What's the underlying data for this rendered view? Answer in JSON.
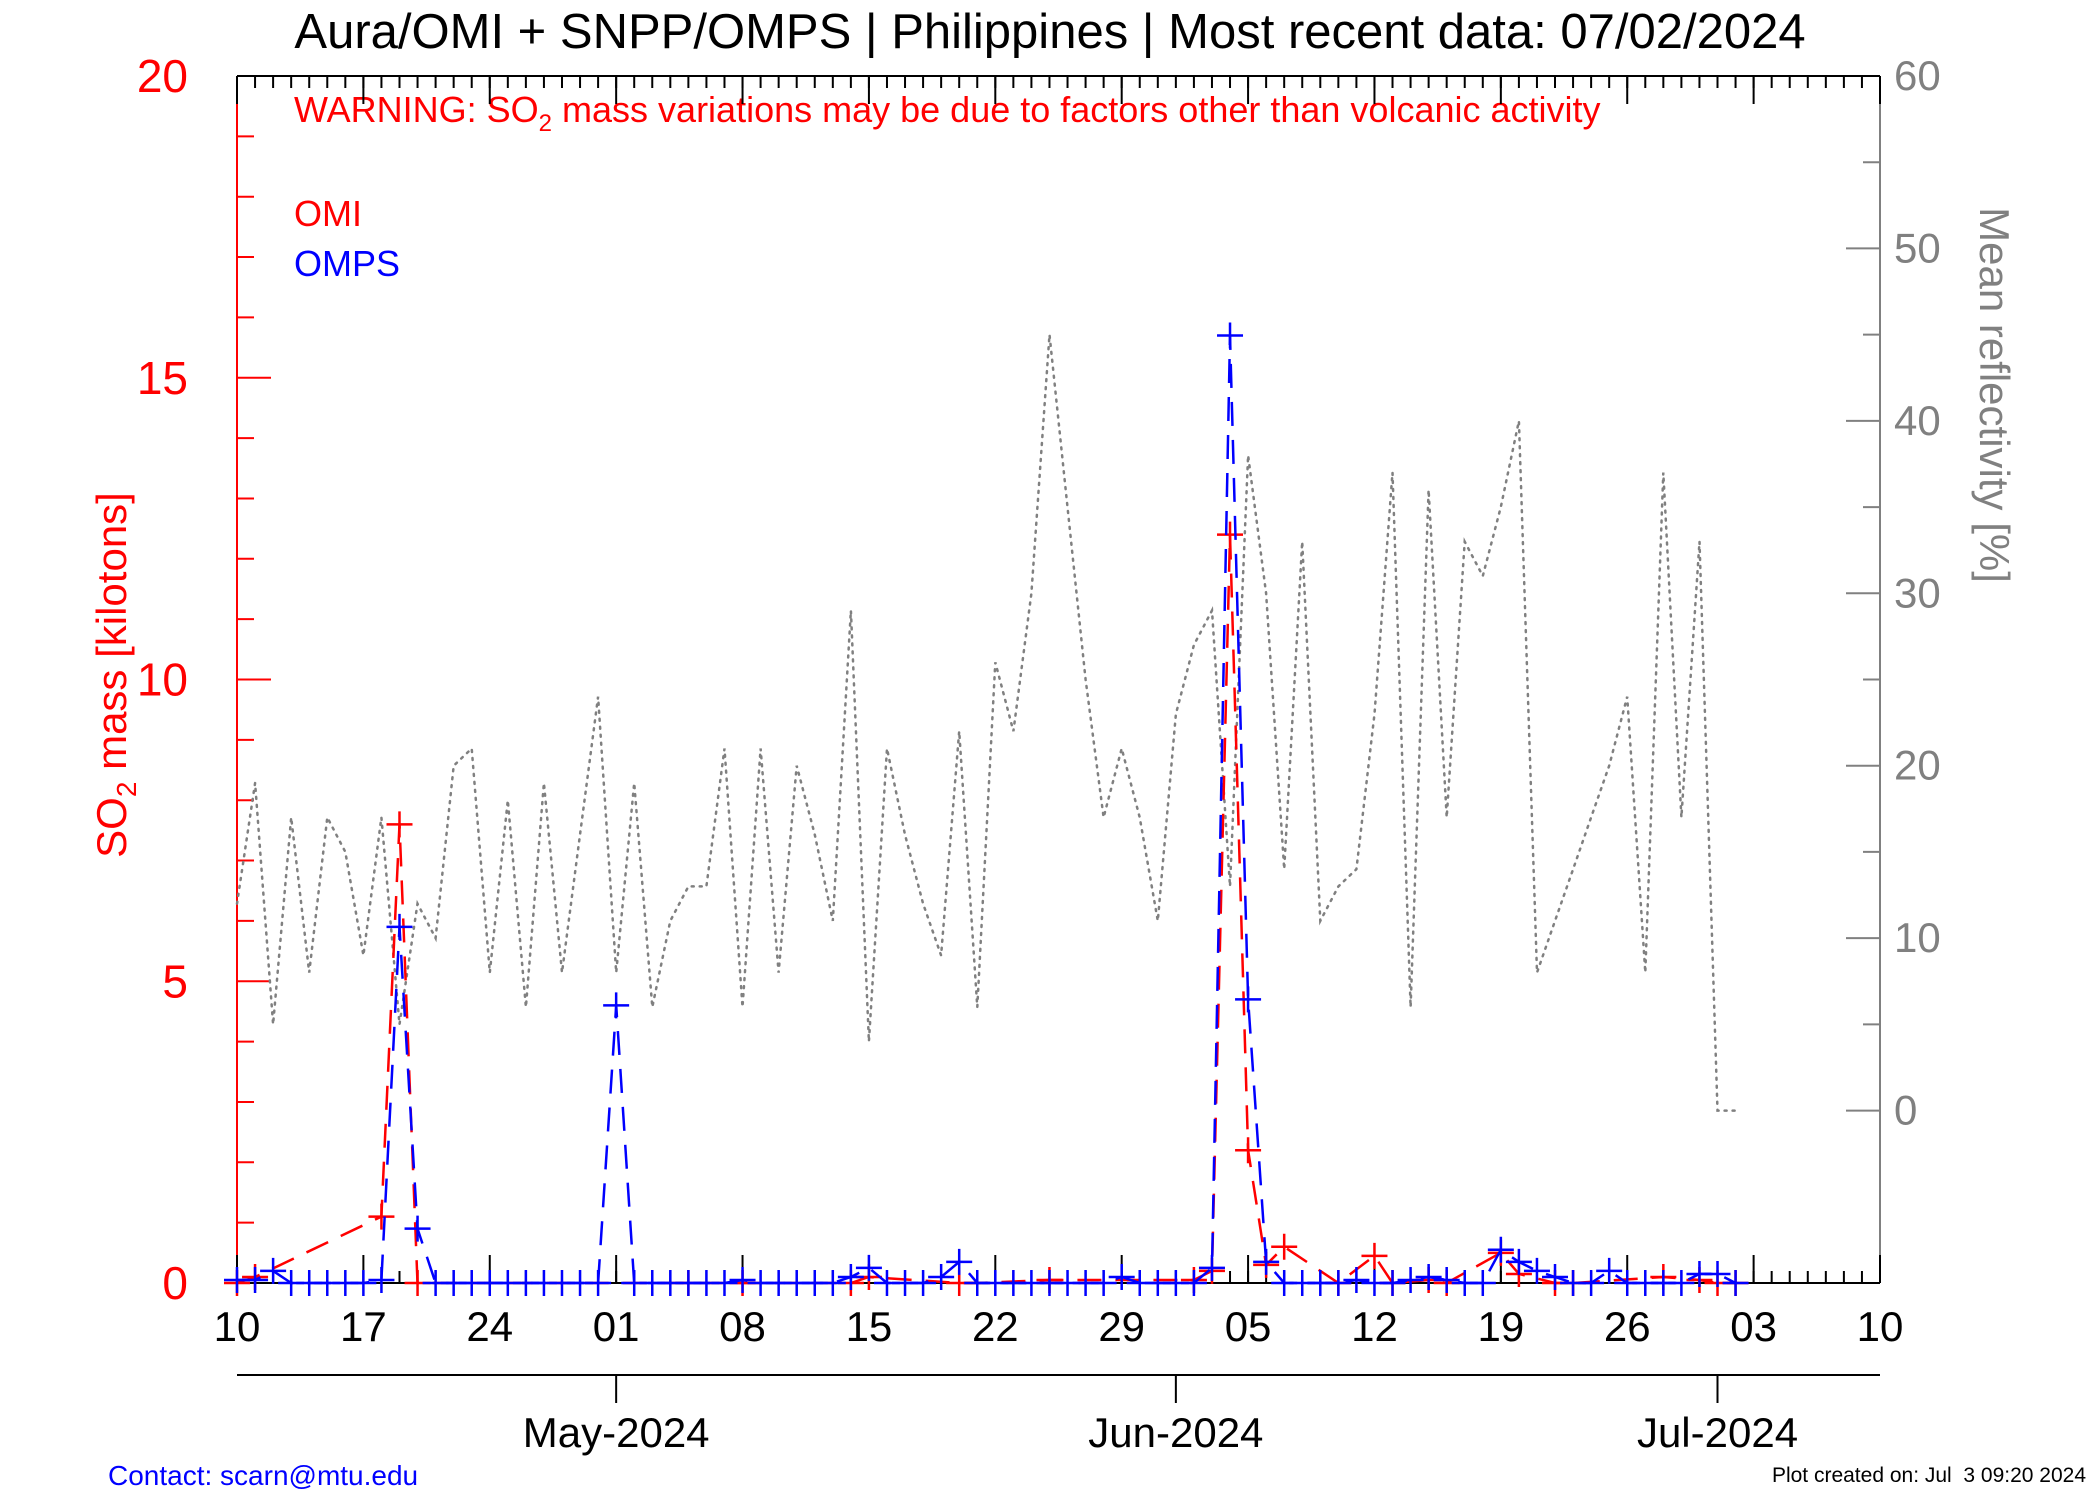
{
  "chart_data": {
    "type": "line",
    "title": "Aura/OMI + SNPP/OMPS | Philippines | Most recent data: 07/02/2024",
    "warning": {
      "prefix": "WARNING: SO",
      "subscript": "2",
      "suffix": " mass variations may be due to factors other than volcanic activity"
    },
    "ylabel_left": {
      "prefix": "SO",
      "subscript": "2",
      "suffix": " mass [kilotons]"
    },
    "ylabel_right": "Mean reflectivity [%]",
    "ylim_left": [
      0,
      20
    ],
    "ylim_right": [
      -10,
      60
    ],
    "y_ticks_left": [
      "0",
      "5",
      "10",
      "15",
      "20"
    ],
    "y_ticks_right": [
      "0",
      "10",
      "20",
      "30",
      "40",
      "50",
      "60"
    ],
    "xlim": [
      "2024-04-10",
      "2024-07-10"
    ],
    "x_ticks": [
      {
        "date": "2024-04-10",
        "label": "10"
      },
      {
        "date": "2024-04-17",
        "label": "17"
      },
      {
        "date": "2024-04-24",
        "label": "24"
      },
      {
        "date": "2024-05-01",
        "label": "01"
      },
      {
        "date": "2024-05-08",
        "label": "08"
      },
      {
        "date": "2024-05-15",
        "label": "15"
      },
      {
        "date": "2024-05-22",
        "label": "22"
      },
      {
        "date": "2024-05-29",
        "label": "29"
      },
      {
        "date": "2024-06-05",
        "label": "05"
      },
      {
        "date": "2024-06-12",
        "label": "12"
      },
      {
        "date": "2024-06-19",
        "label": "19"
      },
      {
        "date": "2024-06-26",
        "label": "26"
      },
      {
        "date": "2024-07-03",
        "label": "03"
      },
      {
        "date": "2024-07-10",
        "label": "10"
      }
    ],
    "months": [
      {
        "date": "2024-05-01",
        "label": "May-2024"
      },
      {
        "date": "2024-06-01",
        "label": "Jun-2024"
      },
      {
        "date": "2024-07-01",
        "label": "Jul-2024"
      }
    ],
    "legend_placement": "top-left",
    "series": [
      {
        "name": "OMI",
        "color": "#ff0000",
        "style": "dashed",
        "x": [
          "2024-04-10",
          "2024-04-11",
          "2024-04-18",
          "2024-04-19",
          "2024-04-20",
          "2024-05-05",
          "2024-05-08",
          "2024-05-14",
          "2024-05-15",
          "2024-05-20",
          "2024-05-21",
          "2024-05-25",
          "2024-06-02",
          "2024-06-03",
          "2024-06-04",
          "2024-06-05",
          "2024-06-06",
          "2024-06-07",
          "2024-06-10",
          "2024-06-12",
          "2024-06-13",
          "2024-06-15",
          "2024-06-16",
          "2024-06-19",
          "2024-06-20",
          "2024-06-22",
          "2024-06-23",
          "2024-06-28",
          "2024-06-30",
          "2024-07-01",
          "2024-07-02"
        ],
        "values": [
          0,
          0.1,
          1.1,
          7.6,
          0,
          0,
          0,
          0,
          0.1,
          0,
          0,
          0.05,
          0.05,
          0.2,
          12.4,
          2.2,
          0.3,
          0.6,
          0,
          0.45,
          0,
          0.05,
          0,
          0.5,
          0.15,
          0,
          0,
          0.1,
          0.05,
          0,
          0
        ]
      },
      {
        "name": "OMPS",
        "color": "#0000ff",
        "style": "dashed",
        "x": [
          "2024-04-10",
          "2024-04-11",
          "2024-04-12",
          "2024-04-13",
          "2024-04-14",
          "2024-04-15",
          "2024-04-16",
          "2024-04-17",
          "2024-04-18",
          "2024-04-19",
          "2024-04-20",
          "2024-04-21",
          "2024-04-22",
          "2024-04-23",
          "2024-04-24",
          "2024-04-25",
          "2024-04-26",
          "2024-04-27",
          "2024-04-28",
          "2024-04-29",
          "2024-04-30",
          "2024-05-01",
          "2024-05-02",
          "2024-05-03",
          "2024-05-04",
          "2024-05-05",
          "2024-05-06",
          "2024-05-07",
          "2024-05-08",
          "2024-05-09",
          "2024-05-10",
          "2024-05-11",
          "2024-05-12",
          "2024-05-13",
          "2024-05-14",
          "2024-05-15",
          "2024-05-16",
          "2024-05-17",
          "2024-05-18",
          "2024-05-19",
          "2024-05-20",
          "2024-05-21",
          "2024-05-22",
          "2024-05-23",
          "2024-05-24",
          "2024-05-25",
          "2024-05-26",
          "2024-05-27",
          "2024-05-28",
          "2024-05-29",
          "2024-05-30",
          "2024-05-31",
          "2024-06-01",
          "2024-06-02",
          "2024-06-03",
          "2024-06-04",
          "2024-06-05",
          "2024-06-06",
          "2024-06-07",
          "2024-06-08",
          "2024-06-09",
          "2024-06-10",
          "2024-06-11",
          "2024-06-12",
          "2024-06-13",
          "2024-06-14",
          "2024-06-15",
          "2024-06-16",
          "2024-06-17",
          "2024-06-18",
          "2024-06-19",
          "2024-06-20",
          "2024-06-21",
          "2024-06-22",
          "2024-06-23",
          "2024-06-24",
          "2024-06-25",
          "2024-06-26",
          "2024-06-27",
          "2024-06-28",
          "2024-06-29",
          "2024-06-30",
          "2024-07-01",
          "2024-07-02"
        ],
        "values": [
          0.05,
          0.05,
          0.2,
          0,
          0,
          0,
          0,
          0,
          0.05,
          5.9,
          0.9,
          0,
          0,
          0,
          0,
          0,
          0,
          0,
          0,
          0,
          0,
          4.6,
          0,
          0,
          0,
          0,
          0,
          0,
          0.05,
          0,
          0,
          0,
          0,
          0,
          0.1,
          0.25,
          0,
          0,
          0,
          0.1,
          0.35,
          0,
          0,
          0,
          0,
          0,
          0,
          0,
          0,
          0.1,
          0,
          0,
          0,
          0,
          0.25,
          15.7,
          4.7,
          0.35,
          0,
          0,
          0,
          0,
          0.05,
          0,
          0,
          0.05,
          0.1,
          0.05,
          0,
          0,
          0.55,
          0.35,
          0.2,
          0.1,
          0,
          0,
          0.2,
          0,
          0,
          0,
          0,
          0.15,
          0.15,
          0
        ]
      },
      {
        "name": "Mean reflectivity",
        "axis": "right",
        "color": "#808080",
        "style": "dotted",
        "x": [
          "2024-04-10",
          "2024-04-11",
          "2024-04-12",
          "2024-04-13",
          "2024-04-14",
          "2024-04-15",
          "2024-04-16",
          "2024-04-17",
          "2024-04-18",
          "2024-04-19",
          "2024-04-20",
          "2024-04-21",
          "2024-04-22",
          "2024-04-23",
          "2024-04-24",
          "2024-04-25",
          "2024-04-26",
          "2024-04-27",
          "2024-04-28",
          "2024-04-29",
          "2024-04-30",
          "2024-05-01",
          "2024-05-02",
          "2024-05-03",
          "2024-05-04",
          "2024-05-05",
          "2024-05-06",
          "2024-05-07",
          "2024-05-08",
          "2024-05-09",
          "2024-05-10",
          "2024-05-11",
          "2024-05-12",
          "2024-05-13",
          "2024-05-14",
          "2024-05-15",
          "2024-05-16",
          "2024-05-17",
          "2024-05-18",
          "2024-05-19",
          "2024-05-20",
          "2024-05-21",
          "2024-05-22",
          "2024-05-23",
          "2024-05-24",
          "2024-05-25",
          "2024-05-26",
          "2024-05-27",
          "2024-05-28",
          "2024-05-29",
          "2024-05-30",
          "2024-05-31",
          "2024-06-01",
          "2024-06-02",
          "2024-06-03",
          "2024-06-04",
          "2024-06-05",
          "2024-06-06",
          "2024-06-07",
          "2024-06-08",
          "2024-06-09",
          "2024-06-10",
          "2024-06-11",
          "2024-06-12",
          "2024-06-13",
          "2024-06-14",
          "2024-06-15",
          "2024-06-16",
          "2024-06-17",
          "2024-06-18",
          "2024-06-19",
          "2024-06-20",
          "2024-06-21",
          "2024-06-22",
          "2024-06-23",
          "2024-06-24",
          "2024-06-25",
          "2024-06-26",
          "2024-06-27",
          "2024-06-28",
          "2024-06-29",
          "2024-06-30",
          "2024-07-01",
          "2024-07-02"
        ],
        "values": [
          12,
          19,
          5,
          17,
          8,
          17,
          15,
          9,
          17,
          5,
          12,
          10,
          20,
          21,
          8,
          18,
          6,
          19,
          8,
          16,
          24,
          8,
          19,
          6,
          11,
          13,
          13,
          21,
          6,
          21,
          8,
          20,
          16,
          11,
          29,
          4,
          21,
          16,
          12,
          9,
          22,
          6,
          26,
          22,
          30,
          45,
          35,
          25,
          17,
          21,
          17,
          11,
          23,
          27,
          29,
          13,
          38,
          30,
          14,
          33,
          11,
          13,
          14,
          23,
          37,
          6,
          36,
          17,
          33,
          31,
          35,
          40,
          8,
          11,
          14,
          17,
          20,
          24,
          8,
          37,
          17,
          33,
          0,
          0
        ]
      }
    ]
  },
  "footer": {
    "contact": "Contact: scarn@mtu.edu",
    "created": "Plot created on: Jul  3 09:20 2024"
  }
}
